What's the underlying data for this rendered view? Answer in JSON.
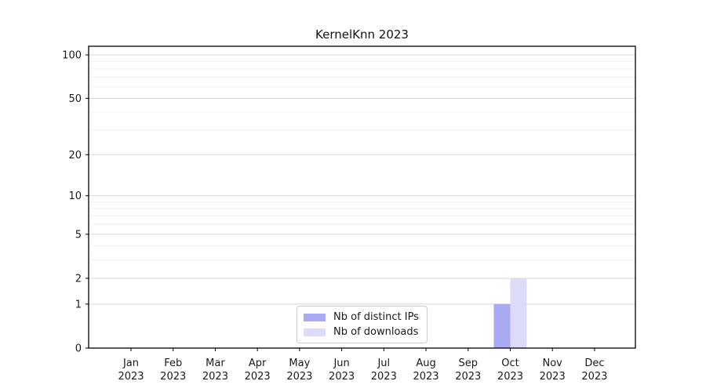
{
  "chart_data": {
    "type": "bar",
    "title": "KernelKnn 2023",
    "xlabel": "",
    "ylabel": "",
    "months": [
      "Jan",
      "Feb",
      "Mar",
      "Apr",
      "May",
      "Jun",
      "Jul",
      "Aug",
      "Sep",
      "Oct",
      "Nov",
      "Dec"
    ],
    "year": "2023",
    "categories": [
      "Jan 2023",
      "Feb 2023",
      "Mar 2023",
      "Apr 2023",
      "May 2023",
      "Jun 2023",
      "Jul 2023",
      "Aug 2023",
      "Sep 2023",
      "Oct 2023",
      "Nov 2023",
      "Dec 2023"
    ],
    "series": [
      {
        "name": "Nb of distinct IPs",
        "color": "#aaaaf2",
        "values": [
          0,
          0,
          0,
          0,
          0,
          0,
          0,
          0,
          0,
          1,
          0,
          0
        ]
      },
      {
        "name": "Nb of downloads",
        "color": "#dcdcf8",
        "values": [
          0,
          0,
          0,
          0,
          0,
          0,
          0,
          0,
          0,
          2,
          0,
          0
        ]
      }
    ],
    "y_axis": {
      "scale": "log1p",
      "ticks": [
        0,
        1,
        2,
        5,
        10,
        20,
        50,
        100
      ],
      "minor_gridlines": [
        3,
        4,
        6,
        7,
        8,
        9,
        30,
        40,
        60,
        70,
        80,
        90
      ],
      "range_top": 115
    },
    "legend_position": "bottom-center",
    "grid": "on"
  },
  "colors": {
    "grid_major": "#d6d6d6",
    "grid_minor": "#f1f1f1",
    "spine": "#000000",
    "background": "#ffffff"
  }
}
